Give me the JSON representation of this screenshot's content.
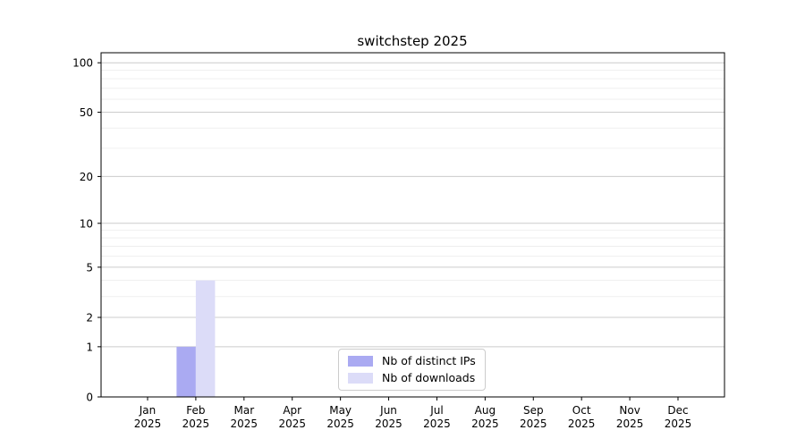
{
  "figure": {
    "title": "switchstep 2025"
  },
  "chart_data": {
    "type": "bar",
    "title": "switchstep 2025",
    "x_categories": [
      {
        "month": "Jan",
        "year": "2025"
      },
      {
        "month": "Feb",
        "year": "2025"
      },
      {
        "month": "Mar",
        "year": "2025"
      },
      {
        "month": "Apr",
        "year": "2025"
      },
      {
        "month": "May",
        "year": "2025"
      },
      {
        "month": "Jun",
        "year": "2025"
      },
      {
        "month": "Jul",
        "year": "2025"
      },
      {
        "month": "Aug",
        "year": "2025"
      },
      {
        "month": "Sep",
        "year": "2025"
      },
      {
        "month": "Oct",
        "year": "2025"
      },
      {
        "month": "Nov",
        "year": "2025"
      },
      {
        "month": "Dec",
        "year": "2025"
      }
    ],
    "series": [
      {
        "name": "Nb of distinct IPs",
        "color": "#aaaaf2",
        "values": [
          0,
          1,
          0,
          0,
          0,
          0,
          0,
          0,
          0,
          0,
          0,
          0
        ]
      },
      {
        "name": "Nb of downloads",
        "color": "#dcdcf8",
        "values": [
          0,
          4,
          0,
          0,
          0,
          0,
          0,
          0,
          0,
          0,
          0,
          0
        ]
      }
    ],
    "yaxis": {
      "scale": "log1p",
      "min": 0,
      "max": 115,
      "major_ticks": [
        0,
        1,
        2,
        5,
        10,
        20,
        50,
        100
      ],
      "minor_ticks": [
        3,
        4,
        6,
        7,
        8,
        9,
        30,
        40,
        60,
        70,
        80,
        90
      ]
    },
    "xaxis": {
      "label_line2_shared": "2025"
    },
    "legend": {
      "position": "lower-center"
    },
    "grid": {
      "orientation": "horizontal",
      "major_color": "#cccccc",
      "minor_color": "#ececec"
    },
    "colors": {
      "axis": "#000000",
      "text": "#000000",
      "background": "#ffffff"
    }
  }
}
